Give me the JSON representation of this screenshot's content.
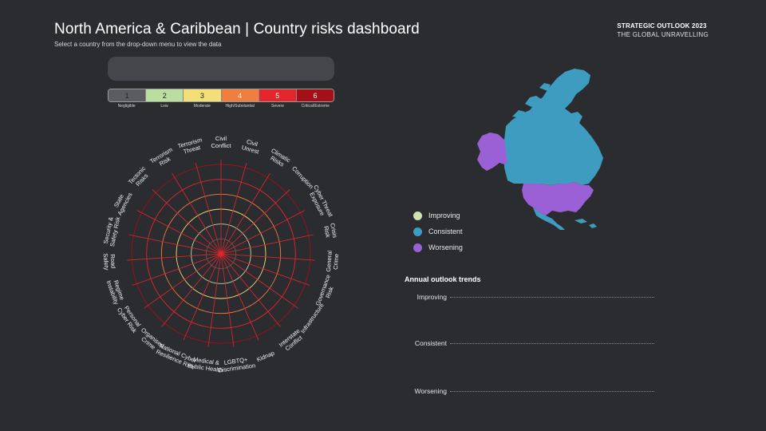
{
  "header": {
    "title": "North America & Caribbean | Country risks dashboard",
    "subtitle": "Select a country from the drop-down menu to view the data"
  },
  "brand": {
    "line1": "STRATEGIC OUTLOOK 2023",
    "line2": "THE GLOBAL UNRAVELLING"
  },
  "dropdown": {
    "value": ""
  },
  "risk_scale": [
    {
      "level": "1",
      "label": "Negligible",
      "color": "#5b5c60"
    },
    {
      "level": "2",
      "label": "Low",
      "color": "#b9dea0"
    },
    {
      "level": "3",
      "label": "Moderate",
      "color": "#f3de78"
    },
    {
      "level": "4",
      "label": "High/Substantial",
      "color": "#f07e3e"
    },
    {
      "level": "5",
      "label": "Severe",
      "color": "#e3262c"
    },
    {
      "level": "6",
      "label": "Critical/Extreme",
      "color": "#a50f18"
    }
  ],
  "radar": {
    "categories": [
      [
        "Civil",
        "Conflict"
      ],
      [
        "Civil",
        "Unrest"
      ],
      [
        "Climatic",
        "Risks"
      ],
      [
        "Corruption"
      ],
      [
        "Cyber Threat",
        "Exposure"
      ],
      [
        "Crisis",
        "Risk"
      ],
      [
        "General",
        "Crime"
      ],
      [
        "Governance",
        "Risk"
      ],
      [
        "Infrastructure"
      ],
      [
        "Interstate",
        "Conflict"
      ],
      [
        "Kidnap"
      ],
      [
        "LGBTQ+",
        "Discrimination"
      ],
      [
        "Medical &",
        "Public Health"
      ],
      [
        "National Cyber",
        "Resilience Risk"
      ],
      [
        "Organised",
        "Crime"
      ],
      [
        "Personal",
        "Cyber Risk"
      ],
      [
        "Regime",
        "Instability"
      ],
      [
        "Road",
        "Safety"
      ],
      [
        "Security &",
        "Safety Risk"
      ],
      [
        "State",
        "Agencies"
      ],
      [
        "Tectonic",
        "Risks"
      ],
      [
        "Terrorism",
        "Risk"
      ],
      [
        "Terrorism",
        "Threat"
      ]
    ],
    "ring_colors": [
      "#5b5c60",
      "#b9dea0",
      "#f3de78",
      "#f07e3e",
      "#e3262c",
      "#a50f18"
    ],
    "spoke_color": "#e3262c"
  },
  "legend": [
    {
      "label": "Improving",
      "color": "#cfe3b0"
    },
    {
      "label": "Consistent",
      "color": "#3d9cc0"
    },
    {
      "label": "Worsening",
      "color": "#9b5fd6"
    }
  ],
  "trends": {
    "title": "Annual outlook trends",
    "rows": [
      "Improving",
      "Consistent",
      "Worsening"
    ]
  },
  "map_colors": {
    "consistent": "#3d9cc0",
    "worsening": "#9b5fd6"
  }
}
